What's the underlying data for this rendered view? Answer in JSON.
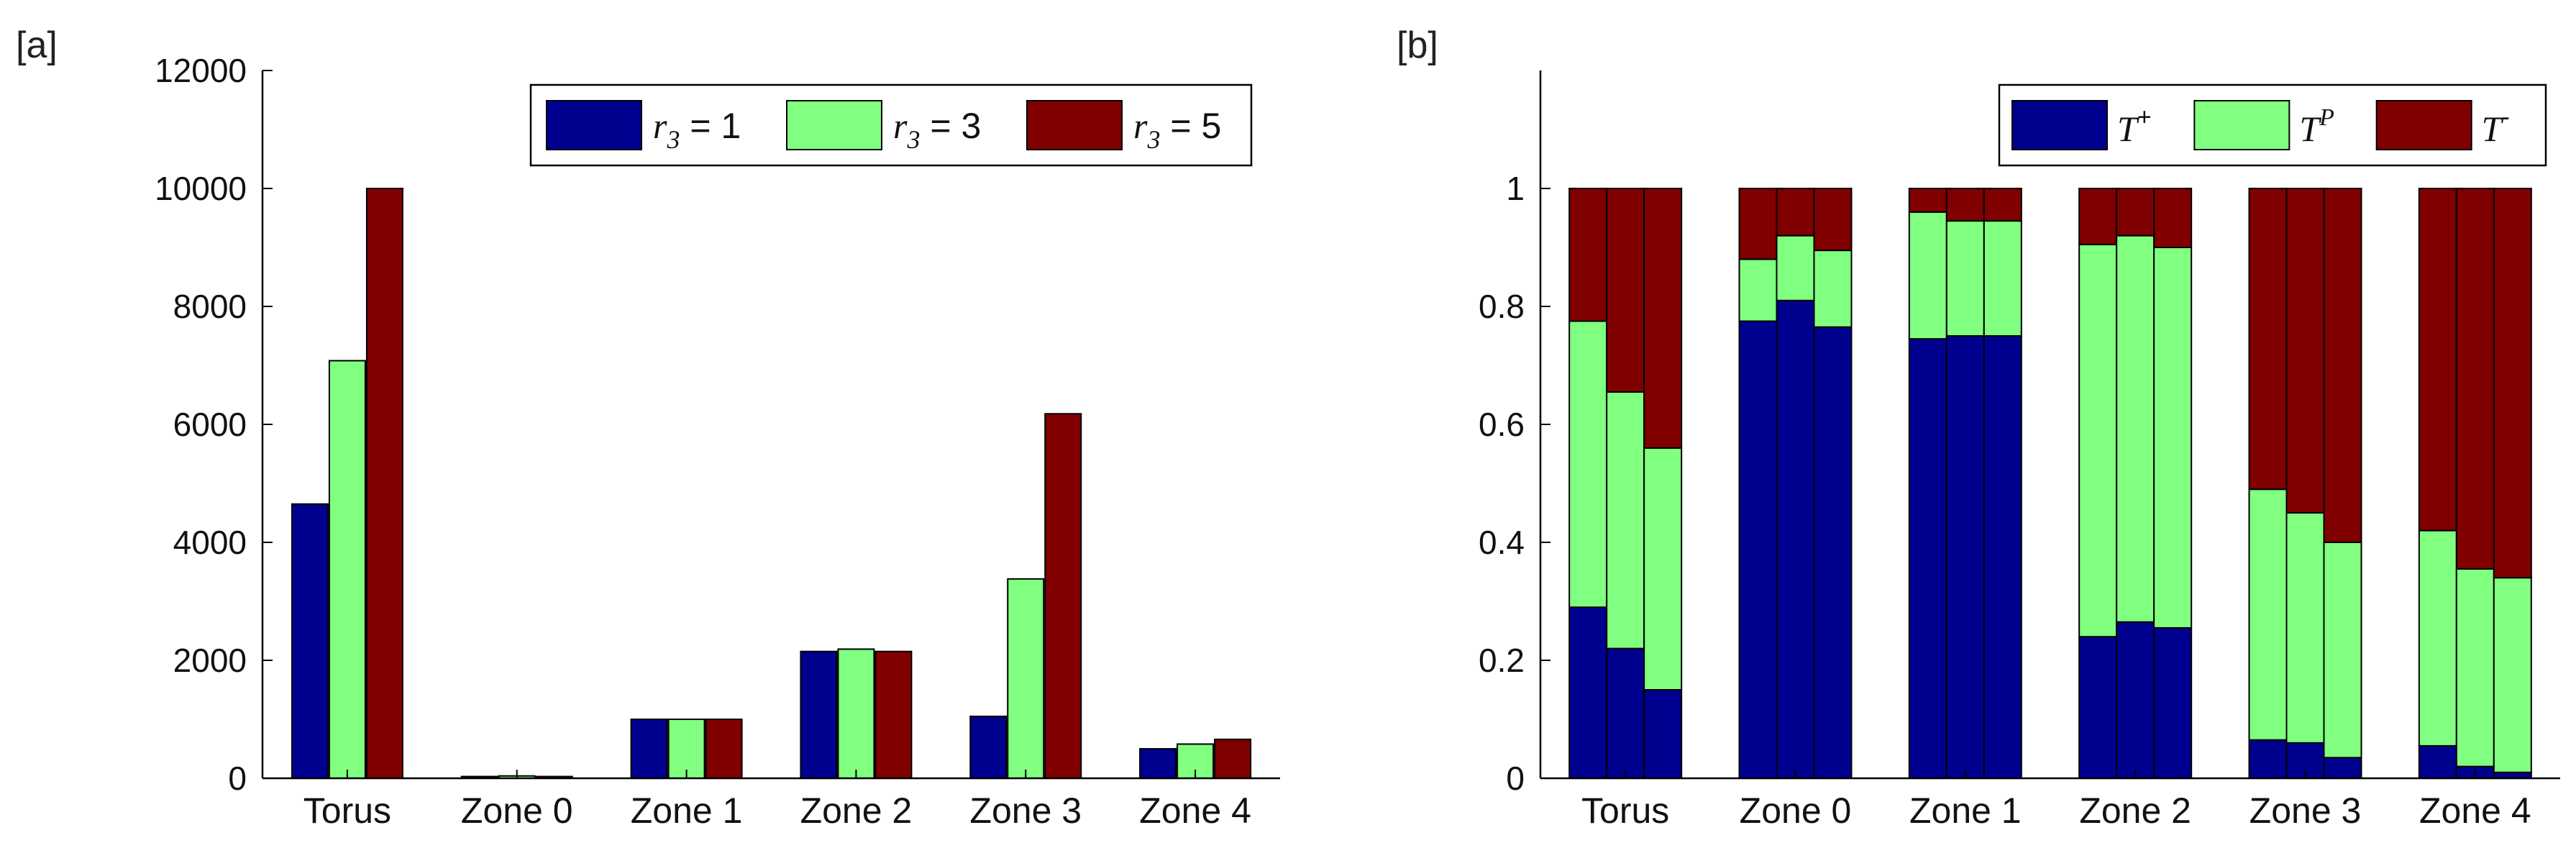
{
  "chart_data": [
    {
      "panel": "[a]",
      "type": "bar",
      "categories": [
        "Torus",
        "Zone 0",
        "Zone 1",
        "Zone 2",
        "Zone 3",
        "Zone 4"
      ],
      "series": [
        {
          "name_symbol": "r",
          "name_sub": "3",
          "name_rest": " = 1",
          "color": "#00008f",
          "values": [
            4650,
            30,
            1000,
            2150,
            1050,
            500
          ]
        },
        {
          "name_symbol": "r",
          "name_sub": "3",
          "name_rest": " = 3",
          "color": "#80ff80",
          "values": [
            7080,
            40,
            1000,
            2190,
            3380,
            580
          ]
        },
        {
          "name_symbol": "r",
          "name_sub": "3",
          "name_rest": " = 5",
          "color": "#800000",
          "values": [
            10000,
            30,
            1000,
            2150,
            6180,
            660
          ]
        }
      ],
      "yticks": [
        "0",
        "2000",
        "4000",
        "6000",
        "8000",
        "10000",
        "12000"
      ],
      "ylim": [
        0,
        12000
      ],
      "legend": "top-right"
    },
    {
      "panel": "[b]",
      "type": "stacked-bar",
      "categories": [
        "Torus",
        "Zone 0",
        "Zone 1",
        "Zone 2",
        "Zone 3",
        "Zone 4"
      ],
      "bars_per_group": 3,
      "series": [
        {
          "name_symbol": "T",
          "name_sup": "+",
          "color": "#00008f",
          "values": [
            [
              0.29,
              0.22,
              0.15
            ],
            [
              0.775,
              0.81,
              0.765
            ],
            [
              0.745,
              0.75,
              0.75
            ],
            [
              0.24,
              0.265,
              0.255
            ],
            [
              0.065,
              0.06,
              0.035
            ],
            [
              0.055,
              0.02,
              0.01
            ]
          ]
        },
        {
          "name_symbol": "T",
          "name_sup": "P",
          "color": "#80ff80",
          "values": [
            [
              0.485,
              0.435,
              0.41
            ],
            [
              0.105,
              0.11,
              0.13
            ],
            [
              0.215,
              0.195,
              0.195
            ],
            [
              0.665,
              0.655,
              0.645
            ],
            [
              0.425,
              0.39,
              0.365
            ],
            [
              0.365,
              0.335,
              0.33
            ]
          ]
        },
        {
          "name_symbol": "T",
          "name_sup": "-",
          "color": "#800000",
          "values": [
            [
              0.225,
              0.345,
              0.44
            ],
            [
              0.12,
              0.08,
              0.105
            ],
            [
              0.04,
              0.055,
              0.055
            ],
            [
              0.095,
              0.08,
              0.1
            ],
            [
              0.51,
              0.55,
              0.6
            ],
            [
              0.58,
              0.645,
              0.66
            ]
          ]
        }
      ],
      "yticks": [
        "0",
        "0.2",
        "0.4",
        "0.6",
        "0.8",
        "1"
      ],
      "ylim": [
        0,
        1.2
      ],
      "legend": "top-right"
    }
  ]
}
